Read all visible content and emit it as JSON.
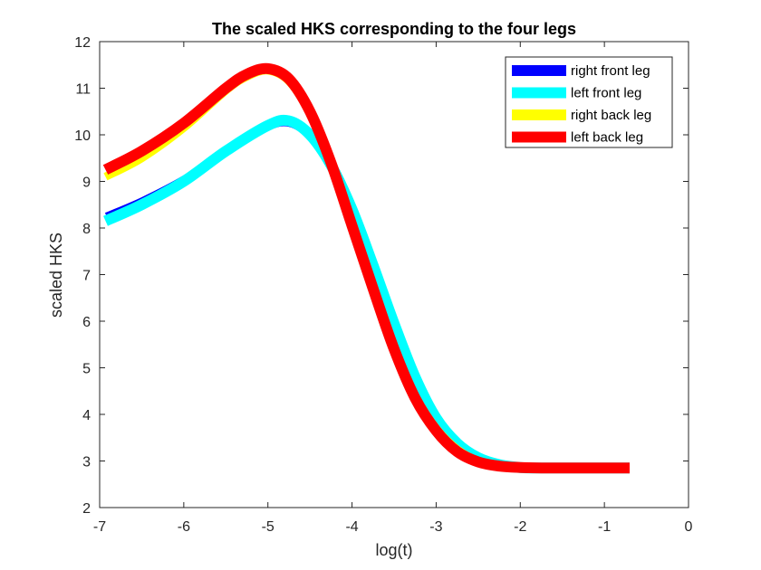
{
  "chart_data": {
    "type": "line",
    "title": "The scaled HKS corresponding to the four legs",
    "xlabel": "log(t)",
    "ylabel": "scaled HKS",
    "xlim": [
      -7,
      0
    ],
    "ylim": [
      2,
      12
    ],
    "xticks": [
      -7,
      -6,
      -5,
      -4,
      -3,
      -2,
      -1,
      0
    ],
    "yticks": [
      2,
      3,
      4,
      5,
      6,
      7,
      8,
      9,
      10,
      11,
      12
    ],
    "xtick_labels": [
      "-7",
      "-6",
      "-5",
      "-4",
      "-3",
      "-2",
      "-1",
      "0"
    ],
    "ytick_labels": [
      "2",
      "3",
      "4",
      "5",
      "6",
      "7",
      "8",
      "9",
      "10",
      "11",
      "12"
    ],
    "grid": false,
    "legend_position": "top-right",
    "series": [
      {
        "name": "right front leg",
        "color": "#0000ff",
        "x": [
          -6.93,
          -6.5,
          -6.0,
          -5.5,
          -5.0,
          -4.75,
          -4.5,
          -4.25,
          -4.0,
          -3.75,
          -3.5,
          -3.25,
          -3.0,
          -2.75,
          -2.5,
          -2.25,
          -2.0,
          -1.75,
          -1.5,
          -1.0,
          -0.7
        ],
        "y": [
          8.3,
          8.63,
          9.1,
          9.7,
          10.12,
          10.2,
          9.9,
          9.25,
          8.3,
          7.15,
          5.9,
          4.75,
          3.9,
          3.4,
          3.1,
          2.94,
          2.87,
          2.85,
          2.85,
          2.85,
          2.85
        ]
      },
      {
        "name": "left front leg",
        "color": "#00ffff",
        "x": [
          -6.93,
          -6.5,
          -6.0,
          -5.5,
          -5.0,
          -4.75,
          -4.5,
          -4.25,
          -4.0,
          -3.75,
          -3.5,
          -3.25,
          -3.0,
          -2.75,
          -2.5,
          -2.25,
          -2.0,
          -1.75,
          -1.5,
          -1.0,
          -0.7
        ],
        "y": [
          8.15,
          8.5,
          9.0,
          9.65,
          10.2,
          10.3,
          10.0,
          9.35,
          8.4,
          7.2,
          5.95,
          4.8,
          3.92,
          3.38,
          3.07,
          2.92,
          2.86,
          2.85,
          2.85,
          2.85,
          2.85
        ]
      },
      {
        "name": "right back leg",
        "color": "#ffff00",
        "x": [
          -6.93,
          -6.5,
          -6.0,
          -5.5,
          -5.25,
          -5.0,
          -4.75,
          -4.5,
          -4.25,
          -4.0,
          -3.75,
          -3.5,
          -3.25,
          -3.0,
          -2.75,
          -2.5,
          -2.25,
          -2.0,
          -1.75,
          -1.5,
          -1.0,
          -0.7
        ],
        "y": [
          9.1,
          9.5,
          10.15,
          10.95,
          11.25,
          11.38,
          11.15,
          10.45,
          9.35,
          8.0,
          6.65,
          5.4,
          4.4,
          3.7,
          3.25,
          3.0,
          2.9,
          2.86,
          2.85,
          2.85,
          2.85,
          2.85
        ]
      },
      {
        "name": "left back leg",
        "color": "#ff0000",
        "x": [
          -6.93,
          -6.5,
          -6.0,
          -5.5,
          -5.25,
          -5.0,
          -4.75,
          -4.5,
          -4.25,
          -4.0,
          -3.75,
          -3.5,
          -3.25,
          -3.0,
          -2.75,
          -2.5,
          -2.25,
          -2.0,
          -1.75,
          -1.5,
          -1.0,
          -0.7
        ],
        "y": [
          9.25,
          9.65,
          10.25,
          11.0,
          11.3,
          11.42,
          11.2,
          10.5,
          9.4,
          8.05,
          6.7,
          5.4,
          4.35,
          3.65,
          3.2,
          2.98,
          2.89,
          2.86,
          2.85,
          2.85,
          2.85,
          2.85
        ]
      }
    ]
  }
}
